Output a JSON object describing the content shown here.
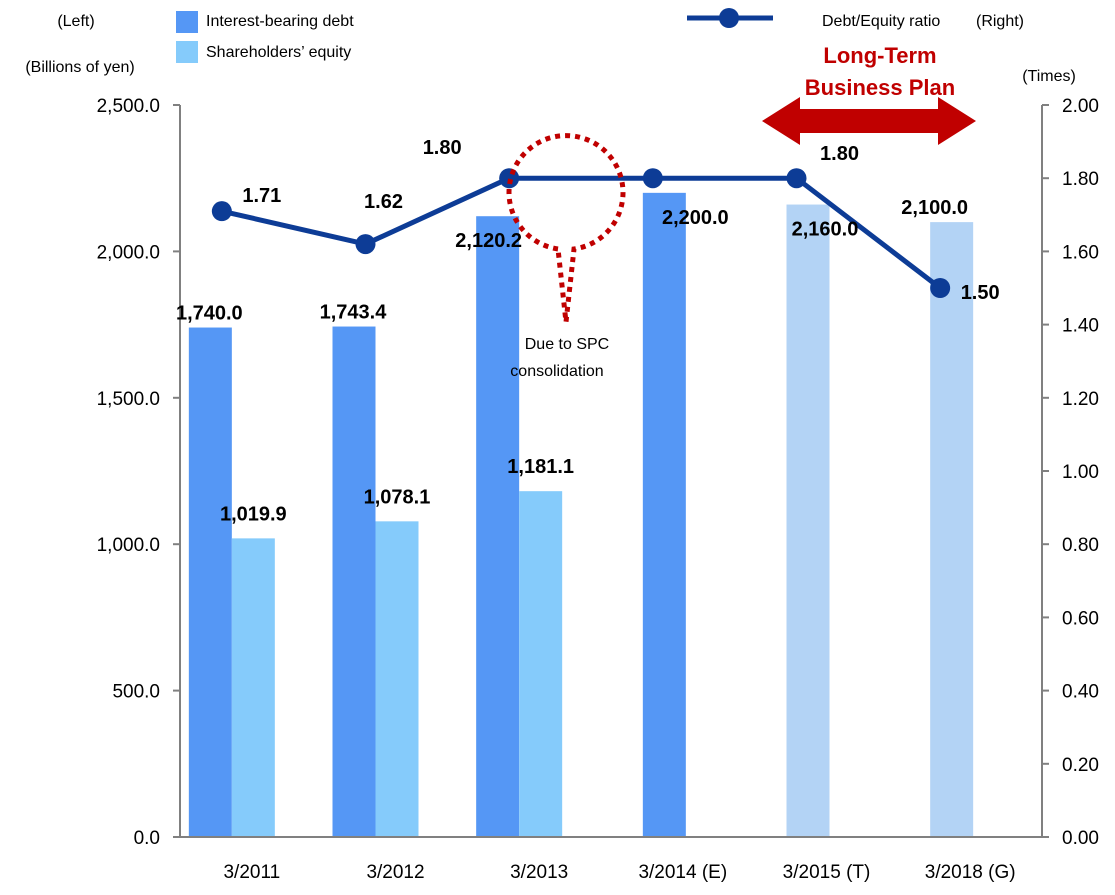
{
  "chart_data": {
    "type": "bar",
    "categories": [
      "3/2011",
      "3/2012",
      "3/2013",
      "3/2014 (E)",
      "3/2015 (T)",
      "3/2018 (G)"
    ],
    "series": [
      {
        "name": "Interest-bearing debt",
        "type": "bar",
        "axis": "left",
        "color": "#5597f5",
        "values": [
          1740.0,
          1743.4,
          2120.2,
          2200.0,
          null,
          null
        ],
        "labels": [
          "1,740.0",
          "1,743.4",
          "2,120.2",
          "2,200.0",
          null,
          null
        ]
      },
      {
        "name": "Shareholders’ equity",
        "type": "bar",
        "axis": "left",
        "color": "#85cbfb",
        "values": [
          1019.9,
          1078.1,
          1181.1,
          null,
          null,
          null
        ],
        "labels": [
          "1,019.9",
          "1,078.1",
          "1,181.1",
          null,
          null,
          null
        ]
      },
      {
        "name": "",
        "type": "bar",
        "axis": "left",
        "color": "#b3d3f5",
        "values": [
          null,
          null,
          null,
          null,
          2160.0,
          2100.0
        ],
        "labels": [
          null,
          null,
          null,
          null,
          "2,160.0",
          "2,100.0"
        ]
      },
      {
        "name": "Debt/Equity ratio",
        "type": "line",
        "axis": "right",
        "color": "#0d3c96",
        "values": [
          1.71,
          1.62,
          1.8,
          1.8,
          1.8,
          1.5
        ],
        "labels": [
          "1.71",
          "1.62",
          "1.80",
          null,
          "1.80",
          "1.50"
        ]
      }
    ],
    "left_axis": {
      "unit_top": "(Left)",
      "label": "(Billions of yen)",
      "ylim": [
        0,
        2500
      ],
      "ticks": [
        "0.0",
        "500.0",
        "1,000.0",
        "1,500.0",
        "2,000.0",
        "2,500.0"
      ]
    },
    "right_axis": {
      "unit_top": "(Right)",
      "label": "(Times)",
      "ylim": [
        0,
        2.0
      ],
      "ticks": [
        "0.00",
        "0.20",
        "0.40",
        "0.60",
        "0.80",
        "1.00",
        "1.20",
        "1.40",
        "1.60",
        "1.80",
        "2.00"
      ]
    },
    "annotations": {
      "plan_line1": "Long-Term",
      "plan_line2": "Business Plan",
      "plan_color": "#c00000",
      "note_line1": "Due to SPC",
      "note_line2": "consolidation"
    },
    "grid": false,
    "legend_position": "top"
  }
}
